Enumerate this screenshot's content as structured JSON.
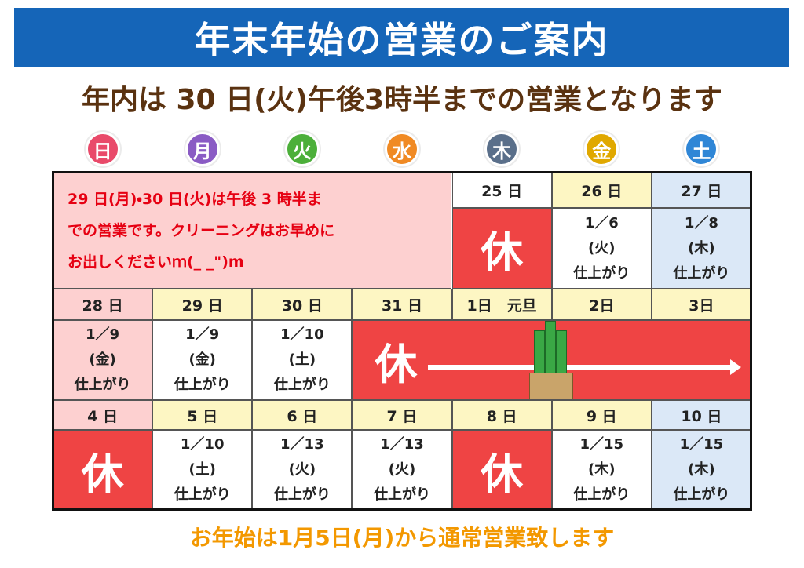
{
  "header": {
    "title": "年末年始の営業のご案内",
    "subtitle": "年内は 30 日(火)午後3時半までの営業となります"
  },
  "weekdays": [
    "日",
    "月",
    "火",
    "水",
    "木",
    "金",
    "土"
  ],
  "calendar": {
    "note": [
      "29 日(月)・30 日(火)は午後 3 時半ま",
      "での営業です。クリーニングはお早めに",
      "お出しくださいｍ(_ _\")m"
    ],
    "weeks": [
      [
        {
          "date": "25 日",
          "closed": "休"
        },
        {
          "date": "26 日",
          "pickup": [
            "1／6",
            "(火)",
            "仕上がり"
          ]
        },
        {
          "date": "27 日",
          "pickup": [
            "1／8",
            "(木)",
            "仕上がり"
          ]
        }
      ],
      [
        {
          "date": "28 日",
          "pickup": [
            "1／9",
            "(金)",
            "仕上がり"
          ]
        },
        {
          "date": "29 日",
          "pickup": [
            "1／9",
            "(金)",
            "仕上がり"
          ]
        },
        {
          "date": "30 日",
          "pickup": [
            "1／10",
            "(土)",
            "仕上がり"
          ]
        },
        {
          "date": "31 日",
          "closed": "休"
        },
        {
          "date": "1日　元旦"
        },
        {
          "date": "2日"
        },
        {
          "date": "3日"
        }
      ],
      [
        {
          "date": "4 日",
          "closed": "休"
        },
        {
          "date": "5 日",
          "pickup": [
            "1／10",
            "(土)",
            "仕上がり"
          ]
        },
        {
          "date": "6 日",
          "pickup": [
            "1／13",
            "(火)",
            "仕上がり"
          ]
        },
        {
          "date": "7 日",
          "pickup": [
            "1／13",
            "(火)",
            "仕上がり"
          ]
        },
        {
          "date": "8 日",
          "closed": "休"
        },
        {
          "date": "9 日",
          "pickup": [
            "1／15",
            "(木)",
            "仕上がり"
          ]
        },
        {
          "date": "10 日",
          "pickup": [
            "1／15",
            "(木)",
            "仕上がり"
          ]
        }
      ]
    ]
  },
  "footer": "お年始は1月5日(月)から通常営業致します"
}
